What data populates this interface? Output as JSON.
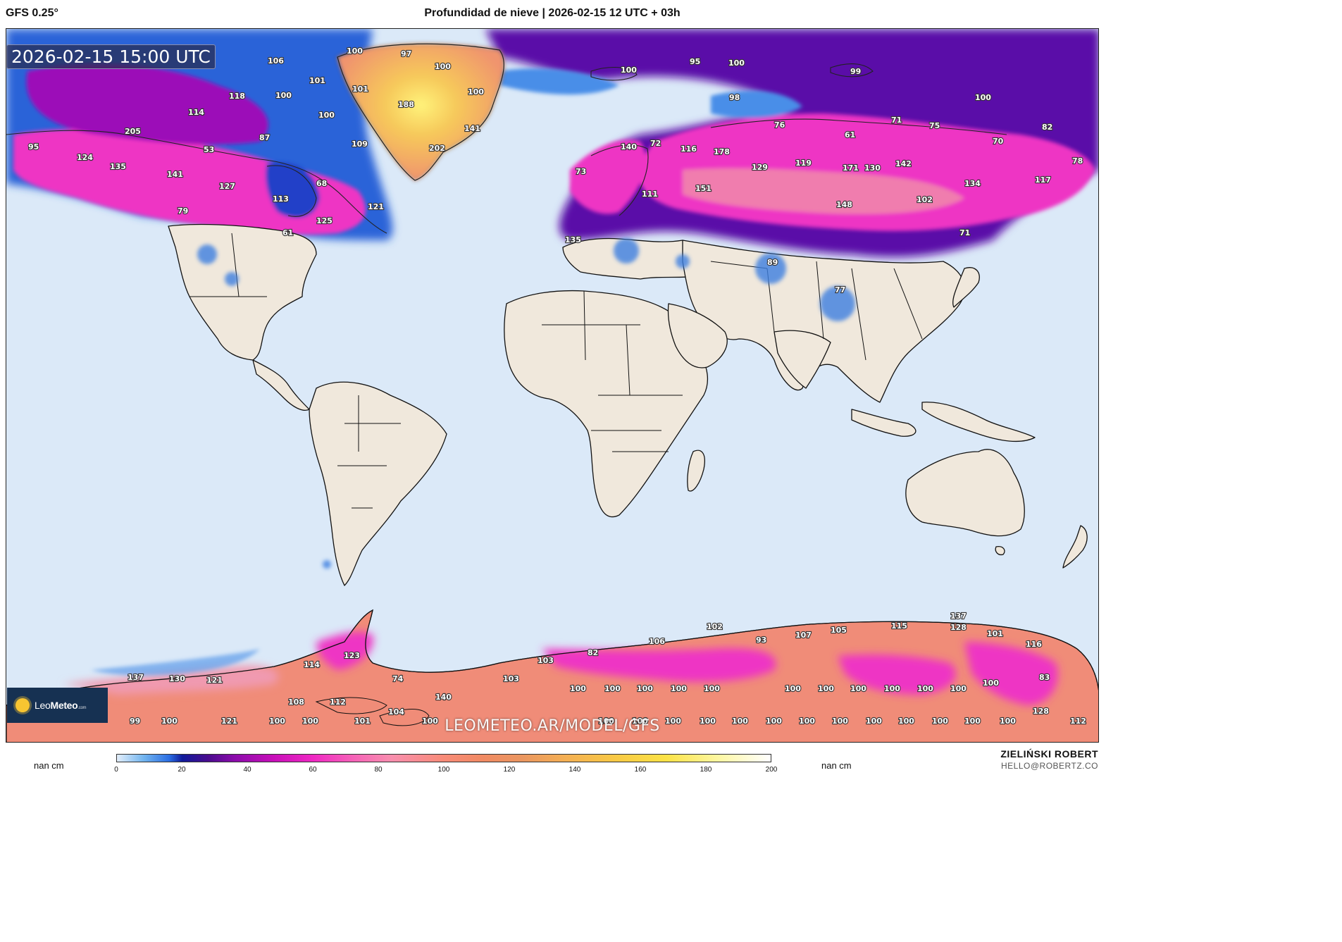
{
  "header": {
    "model": "GFS 0.25°",
    "title": "Profundidad de nieve | 2026-02-15 12 UTC + 03h"
  },
  "valid_time": "2026-02-15 15:00 UTC",
  "logo": {
    "brand_a": "Leo",
    "brand_b": "Meteo",
    "brand_c": ".com"
  },
  "watermark": "LEOMETEO.AR/MODEL/GFS",
  "colorbar": {
    "unit_left": "nan cm",
    "unit_right": "nan cm",
    "ticks": [
      "0",
      "20",
      "40",
      "60",
      "80",
      "100",
      "120",
      "140",
      "160",
      "180",
      "200"
    ],
    "range": [
      0,
      200
    ]
  },
  "credit": {
    "name": "ZIELIŃSKI ROBERT",
    "email": "HELLO@ROBERTZ.CO"
  },
  "colors": {
    "ocean": "#dbe9f8",
    "land": "#f0e8dc",
    "snow_low": "#4a90e8",
    "snow_mid": "#8a0fb0",
    "snow_high": "#f03cc0",
    "snow_deep": "#f08c78",
    "snow_max": "#fff27a"
  },
  "labels": [
    "95",
    "124",
    "135",
    "205",
    "141",
    "127",
    "79",
    "53",
    "113",
    "68",
    "121",
    "125",
    "61",
    "114",
    "118",
    "100",
    "106",
    "101",
    "87",
    "100",
    "101",
    "109",
    "97",
    "100",
    "188",
    "100",
    "141",
    "202",
    "100",
    "140",
    "72",
    "73",
    "111",
    "135",
    "116",
    "178",
    "151",
    "129",
    "119",
    "171",
    "130",
    "142",
    "148",
    "134",
    "102",
    "76",
    "61",
    "71",
    "75",
    "82",
    "70",
    "78",
    "117",
    "98",
    "95",
    "100",
    "99",
    "100",
    "71",
    "89",
    "77",
    "100",
    "128",
    "137",
    "130",
    "121",
    "114",
    "123",
    "108",
    "112",
    "104",
    "140",
    "103",
    "82",
    "106",
    "102",
    "93",
    "107",
    "105",
    "115",
    "128",
    "101",
    "116",
    "83",
    "100",
    "128",
    "112",
    "99",
    "100",
    "121",
    "100",
    "100",
    "101",
    "100",
    "100",
    "100",
    "100",
    "100",
    "100",
    "100",
    "100",
    "100",
    "100",
    "100",
    "100",
    "100",
    "100",
    "74",
    "103"
  ]
}
